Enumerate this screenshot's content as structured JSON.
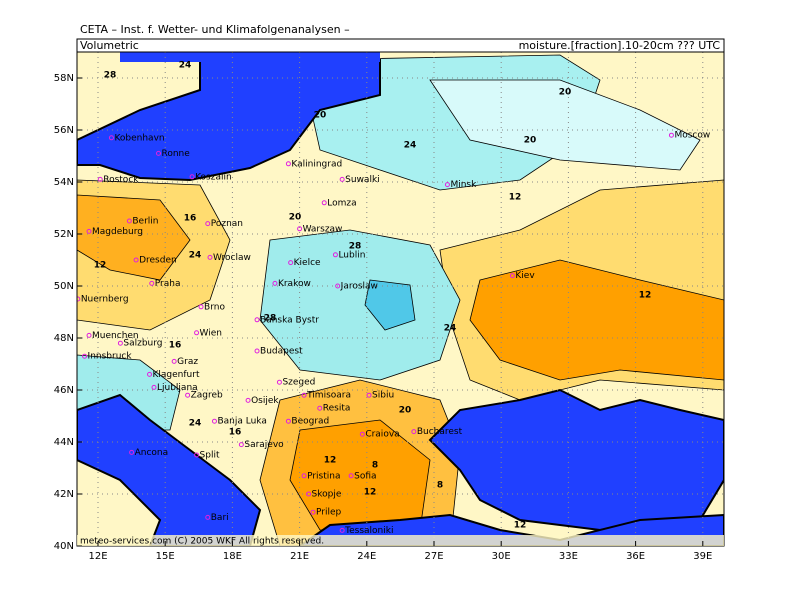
{
  "header": {
    "title": "CETA – Inst. f. Wetter- und Klimafolgenanalysen –"
  },
  "panel": {
    "left_label": "Volumetric",
    "right_label": "moisture.[fraction].10-20cm ??? UTC",
    "footer": "meteo-services.com   (C) 2005 WKF   All rights reserved."
  },
  "axes": {
    "lat_ticks": [
      "40N",
      "42N",
      "44N",
      "46N",
      "48N",
      "50N",
      "52N",
      "54N",
      "56N",
      "58N"
    ],
    "lon_ticks": [
      "12E",
      "15E",
      "18E",
      "21E",
      "24E",
      "27E",
      "30E",
      "33E",
      "36E",
      "39E"
    ]
  },
  "cities": [
    "Kobenhavn",
    "Ronne",
    "Rostock",
    "Koszalin",
    "Kaliningrad",
    "Suwalki",
    "Minsk",
    "Lomza",
    "Berlin",
    "Magdeburg",
    "Poznan",
    "Warszaw",
    "Lublin",
    "Dresden",
    "Wroclaw",
    "Kielce",
    "Praha",
    "Krakow",
    "Jaroslaw",
    "Kiev",
    "Nuernberg",
    "Brno",
    "Banska Bystr",
    "Muenchen",
    "Salzburg",
    "Wien",
    "Budapest",
    "Innsbruck",
    "Graz",
    "Klagenfurt",
    "Ljubljana",
    "Zagreb",
    "Osijek",
    "Szeged",
    "Timisoara",
    "Sibiu",
    "Resita",
    "Beograd",
    "Craiova",
    "Bucharest",
    "Banja Luka",
    "Sarajevo",
    "Split",
    "Ancona",
    "Sofia",
    "Pristina",
    "Skopje",
    "Prilep",
    "Tessaloniki",
    "Bari",
    "Moscow"
  ],
  "contour_labels": [
    24,
    28,
    20,
    24,
    20,
    20,
    12,
    16,
    12,
    24,
    28,
    20,
    16,
    12,
    24,
    20,
    16,
    12,
    8,
    12,
    8,
    28,
    24,
    12
  ]
}
